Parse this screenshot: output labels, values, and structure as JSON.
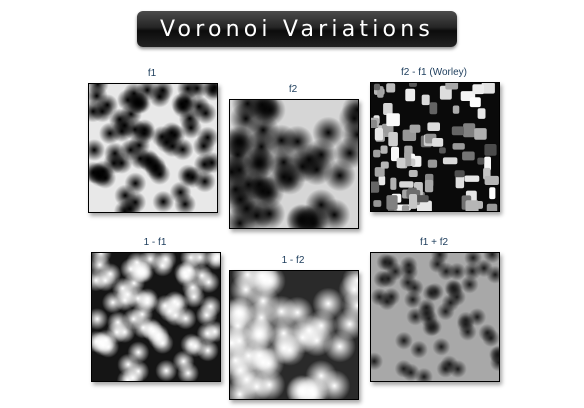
{
  "title": "Voronoi Variations",
  "panels": [
    {
      "id": "f1",
      "label": "f1",
      "mode": "f1"
    },
    {
      "id": "f2",
      "label": "f2",
      "mode": "f2"
    },
    {
      "id": "worley",
      "label": "f2 - f1 (Worley)",
      "mode": "worley"
    },
    {
      "id": "inv-f1",
      "label": "1 - f1",
      "mode": "invf1"
    },
    {
      "id": "inv-f2",
      "label": "1 - f2",
      "mode": "invf2"
    },
    {
      "id": "sum",
      "label": "f1 + f2",
      "mode": "sum"
    }
  ],
  "colors": {
    "banner": "#1a1a1a",
    "label": "#1d3d5c",
    "border": "#000000"
  }
}
